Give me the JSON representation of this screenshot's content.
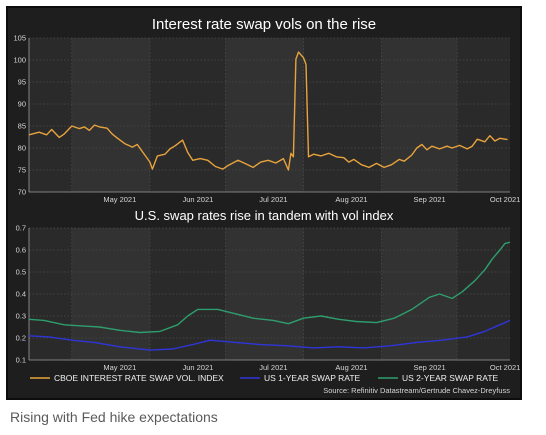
{
  "caption": "Rising with Fed hike expectations",
  "chart_data": [
    {
      "type": "line",
      "title": "Interest rate swap vols on the rise",
      "xlabel": "",
      "ylabel": "",
      "ylim": [
        70,
        105
      ],
      "yticks": [
        "70",
        "75",
        "80",
        "85",
        "90",
        "95",
        "100",
        "105"
      ],
      "xticks": [
        "May 2021",
        "Jun 2021",
        "Jul 2021",
        "Aug 2021",
        "Sep 2021",
        "Oct 2021"
      ],
      "xlim": [
        "2021-04-14",
        "2021-10-22"
      ],
      "grid": true,
      "series": [
        {
          "name": "CBOE INTEREST RATE SWAP VOL. INDEX",
          "color": "#e8a33c",
          "points": [
            [
              "2021-04-14",
              83.0
            ],
            [
              "2021-04-18",
              83.6
            ],
            [
              "2021-04-21",
              83.0
            ],
            [
              "2021-04-23",
              84.2
            ],
            [
              "2021-04-26",
              82.4
            ],
            [
              "2021-04-28",
              83.2
            ],
            [
              "2021-05-01",
              85.0
            ],
            [
              "2021-05-04",
              84.4
            ],
            [
              "2021-05-06",
              84.8
            ],
            [
              "2021-05-08",
              84.0
            ],
            [
              "2021-05-10",
              85.2
            ],
            [
              "2021-05-12",
              84.8
            ],
            [
              "2021-05-15",
              84.5
            ],
            [
              "2021-05-17",
              83.2
            ],
            [
              "2021-05-19",
              82.3
            ],
            [
              "2021-05-22",
              81.0
            ],
            [
              "2021-05-25",
              80.2
            ],
            [
              "2021-05-27",
              80.8
            ],
            [
              "2021-05-29",
              79.2
            ],
            [
              "2021-06-01",
              76.8
            ],
            [
              "2021-06-02",
              75.2
            ],
            [
              "2021-06-04",
              78.2
            ],
            [
              "2021-06-07",
              78.6
            ],
            [
              "2021-06-09",
              79.8
            ],
            [
              "2021-06-11",
              80.5
            ],
            [
              "2021-06-14",
              81.8
            ],
            [
              "2021-06-16",
              79.0
            ],
            [
              "2021-06-18",
              77.2
            ],
            [
              "2021-06-21",
              77.6
            ],
            [
              "2021-06-24",
              77.2
            ],
            [
              "2021-06-27",
              75.8
            ],
            [
              "2021-06-30",
              75.2
            ],
            [
              "2021-07-02",
              76.0
            ],
            [
              "2021-07-06",
              77.2
            ],
            [
              "2021-07-09",
              76.4
            ],
            [
              "2021-07-12",
              75.6
            ],
            [
              "2021-07-15",
              76.8
            ],
            [
              "2021-07-18",
              77.2
            ],
            [
              "2021-07-21",
              76.6
            ],
            [
              "2021-07-24",
              77.6
            ],
            [
              "2021-07-26",
              75.0
            ],
            [
              "2021-07-27",
              78.8
            ],
            [
              "2021-07-28",
              78.0
            ],
            [
              "2021-07-29",
              100.2
            ],
            [
              "2021-07-30",
              101.8
            ],
            [
              "2021-08-01",
              100.5
            ],
            [
              "2021-08-02",
              99.0
            ],
            [
              "2021-08-03",
              78.0
            ],
            [
              "2021-08-05",
              78.6
            ],
            [
              "2021-08-08",
              78.2
            ],
            [
              "2021-08-11",
              78.8
            ],
            [
              "2021-08-14",
              78.0
            ],
            [
              "2021-08-17",
              77.8
            ],
            [
              "2021-08-19",
              76.8
            ],
            [
              "2021-08-21",
              77.4
            ],
            [
              "2021-08-24",
              76.2
            ],
            [
              "2021-08-27",
              75.6
            ],
            [
              "2021-08-30",
              76.5
            ],
            [
              "2021-09-02",
              75.6
            ],
            [
              "2021-09-05",
              76.2
            ],
            [
              "2021-09-08",
              77.4
            ],
            [
              "2021-09-10",
              77.0
            ],
            [
              "2021-09-13",
              78.4
            ],
            [
              "2021-09-15",
              80.0
            ],
            [
              "2021-09-17",
              80.8
            ],
            [
              "2021-09-19",
              79.6
            ],
            [
              "2021-09-21",
              80.4
            ],
            [
              "2021-09-24",
              79.8
            ],
            [
              "2021-09-27",
              80.4
            ],
            [
              "2021-09-29",
              80.0
            ],
            [
              "2021-10-02",
              80.6
            ],
            [
              "2021-10-05",
              79.8
            ],
            [
              "2021-10-07",
              80.4
            ],
            [
              "2021-10-09",
              82.0
            ],
            [
              "2021-10-12",
              81.4
            ],
            [
              "2021-10-14",
              82.8
            ],
            [
              "2021-10-16",
              81.6
            ],
            [
              "2021-10-18",
              82.2
            ],
            [
              "2021-10-21",
              81.9
            ]
          ]
        }
      ]
    },
    {
      "type": "line",
      "title": "U.S. swap rates rise in tandem with vol index",
      "xlabel": "",
      "ylabel": "",
      "ylim": [
        0.1,
        0.7
      ],
      "yticks": [
        "0.1",
        "0.2",
        "0.3",
        "0.4",
        "0.5",
        "0.6",
        "0.7"
      ],
      "xticks": [
        "May 2021",
        "Jun 2021",
        "Jul 2021",
        "Aug 2021",
        "Sep 2021",
        "Oct 2021"
      ],
      "xlim": [
        "2021-04-14",
        "2021-10-22"
      ],
      "grid": true,
      "legend_position": "bottom",
      "series": [
        {
          "name": "CBOE INTEREST RATE SWAP VOL. INDEX",
          "color": "#e8a33c",
          "points": []
        },
        {
          "name": "US 1-YEAR SWAP RATE",
          "color": "#2f35d8",
          "points": [
            [
              "2021-04-14",
              0.21
            ],
            [
              "2021-04-22",
              0.205
            ],
            [
              "2021-05-01",
              0.19
            ],
            [
              "2021-05-10",
              0.18
            ],
            [
              "2021-05-20",
              0.16
            ],
            [
              "2021-06-01",
              0.145
            ],
            [
              "2021-06-10",
              0.15
            ],
            [
              "2021-06-18",
              0.17
            ],
            [
              "2021-06-25",
              0.19
            ],
            [
              "2021-07-05",
              0.18
            ],
            [
              "2021-07-15",
              0.17
            ],
            [
              "2021-07-25",
              0.165
            ],
            [
              "2021-08-05",
              0.155
            ],
            [
              "2021-08-15",
              0.16
            ],
            [
              "2021-08-25",
              0.155
            ],
            [
              "2021-09-05",
              0.165
            ],
            [
              "2021-09-15",
              0.18
            ],
            [
              "2021-09-25",
              0.19
            ],
            [
              "2021-10-05",
              0.205
            ],
            [
              "2021-10-12",
              0.23
            ],
            [
              "2021-10-18",
              0.26
            ],
            [
              "2021-10-22",
              0.28
            ]
          ]
        },
        {
          "name": "US 2-YEAR SWAP RATE",
          "color": "#2e9e6e",
          "points": [
            [
              "2021-04-14",
              0.285
            ],
            [
              "2021-04-20",
              0.28
            ],
            [
              "2021-04-28",
              0.26
            ],
            [
              "2021-05-05",
              0.255
            ],
            [
              "2021-05-12",
              0.25
            ],
            [
              "2021-05-20",
              0.235
            ],
            [
              "2021-05-28",
              0.225
            ],
            [
              "2021-06-05",
              0.23
            ],
            [
              "2021-06-12",
              0.26
            ],
            [
              "2021-06-16",
              0.3
            ],
            [
              "2021-06-20",
              0.33
            ],
            [
              "2021-06-28",
              0.33
            ],
            [
              "2021-07-05",
              0.31
            ],
            [
              "2021-07-12",
              0.29
            ],
            [
              "2021-07-20",
              0.28
            ],
            [
              "2021-07-26",
              0.265
            ],
            [
              "2021-08-01",
              0.29
            ],
            [
              "2021-08-08",
              0.3
            ],
            [
              "2021-08-15",
              0.285
            ],
            [
              "2021-08-22",
              0.275
            ],
            [
              "2021-08-30",
              0.27
            ],
            [
              "2021-09-06",
              0.29
            ],
            [
              "2021-09-13",
              0.33
            ],
            [
              "2021-09-20",
              0.385
            ],
            [
              "2021-09-24",
              0.4
            ],
            [
              "2021-09-29",
              0.38
            ],
            [
              "2021-10-03",
              0.41
            ],
            [
              "2021-10-08",
              0.46
            ],
            [
              "2021-10-12",
              0.51
            ],
            [
              "2021-10-15",
              0.56
            ],
            [
              "2021-10-18",
              0.6
            ],
            [
              "2021-10-20",
              0.63
            ],
            [
              "2021-10-22",
              0.635
            ]
          ]
        }
      ]
    }
  ],
  "source": "Source: Refinitiv Datastream/Gertrude Chavez-Dreyfuss"
}
